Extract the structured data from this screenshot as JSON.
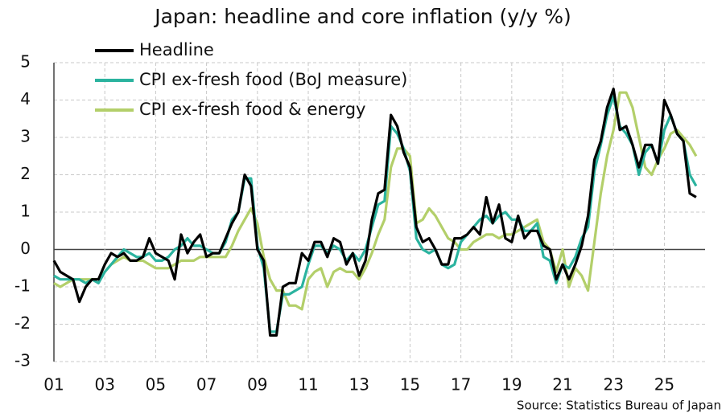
{
  "chart_data": {
    "type": "line",
    "title": "Japan: headline and core inflation (y/y %)",
    "source": "Source: Statistics Bureau of Japan",
    "x": [
      2001,
      2001.25,
      2001.5,
      2001.75,
      2002,
      2002.25,
      2002.5,
      2002.75,
      2003,
      2003.25,
      2003.5,
      2003.75,
      2004,
      2004.25,
      2004.5,
      2004.75,
      2005,
      2005.25,
      2005.5,
      2005.75,
      2006,
      2006.25,
      2006.5,
      2006.75,
      2007,
      2007.25,
      2007.5,
      2007.75,
      2008,
      2008.25,
      2008.5,
      2008.75,
      2009,
      2009.25,
      2009.5,
      2009.75,
      2010,
      2010.25,
      2010.5,
      2010.75,
      2011,
      2011.25,
      2011.5,
      2011.75,
      2012,
      2012.25,
      2012.5,
      2012.75,
      2013,
      2013.25,
      2013.5,
      2013.75,
      2014,
      2014.25,
      2014.5,
      2014.75,
      2015,
      2015.25,
      2015.5,
      2015.75,
      2016,
      2016.25,
      2016.5,
      2016.75,
      2017,
      2017.25,
      2017.5,
      2017.75,
      2018,
      2018.25,
      2018.5,
      2018.75,
      2019,
      2019.25,
      2019.5,
      2019.75,
      2020,
      2020.25,
      2020.5,
      2020.75,
      2021,
      2021.25,
      2021.5,
      2021.75,
      2022,
      2022.25,
      2022.5,
      2022.75,
      2023,
      2023.25,
      2023.5,
      2023.75,
      2024,
      2024.25,
      2024.5,
      2024.75,
      2025,
      2025.25,
      2025.5,
      2025.75,
      2026,
      2026.25
    ],
    "series": [
      {
        "name": "Headline",
        "color": "#000000",
        "values": [
          -0.3,
          -0.6,
          -0.7,
          -0.8,
          -1.4,
          -1.0,
          -0.8,
          -0.8,
          -0.4,
          -0.1,
          -0.2,
          -0.1,
          -0.3,
          -0.3,
          -0.2,
          0.3,
          -0.1,
          -0.2,
          -0.3,
          -0.8,
          0.4,
          -0.1,
          0.2,
          0.4,
          -0.2,
          -0.1,
          -0.1,
          0.3,
          0.7,
          1.0,
          2.0,
          1.7,
          0.0,
          -0.3,
          -2.3,
          -2.3,
          -1.0,
          -0.9,
          -0.9,
          -0.1,
          -0.3,
          0.2,
          0.2,
          -0.2,
          0.3,
          0.2,
          -0.4,
          -0.1,
          -0.7,
          -0.3,
          0.8,
          1.5,
          1.6,
          3.6,
          3.3,
          2.6,
          2.2,
          0.6,
          0.2,
          0.3,
          0.0,
          -0.4,
          -0.4,
          0.3,
          0.3,
          0.4,
          0.6,
          0.4,
          1.4,
          0.7,
          1.2,
          0.3,
          0.2,
          0.9,
          0.3,
          0.5,
          0.5,
          0.1,
          0.0,
          -0.8,
          -0.4,
          -0.8,
          -0.4,
          0.1,
          0.9,
          2.4,
          2.9,
          3.8,
          4.3,
          3.2,
          3.3,
          2.8,
          2.2,
          2.8,
          2.8,
          2.3,
          4.0,
          3.6,
          3.1,
          2.9,
          1.5,
          1.4
        ]
      },
      {
        "name": "CPI ex-fresh food (BoJ measure)",
        "color": "#2bb39f",
        "values": [
          -0.7,
          -0.8,
          -0.8,
          -0.8,
          -0.8,
          -0.9,
          -0.8,
          -0.9,
          -0.6,
          -0.4,
          -0.2,
          0.0,
          -0.1,
          -0.2,
          -0.2,
          -0.1,
          -0.3,
          -0.3,
          -0.2,
          0.0,
          0.1,
          0.3,
          0.1,
          0.1,
          0.0,
          -0.1,
          -0.1,
          0.2,
          0.8,
          1.0,
          1.9,
          1.9,
          0.1,
          -0.5,
          -2.2,
          -2.2,
          -1.2,
          -1.2,
          -1.1,
          -1.0,
          -0.4,
          0.1,
          0.1,
          -0.1,
          0.1,
          0.0,
          -0.3,
          -0.1,
          -0.3,
          0.0,
          0.6,
          1.2,
          1.3,
          3.3,
          3.1,
          2.7,
          2.1,
          0.3,
          0.0,
          -0.1,
          0.0,
          -0.4,
          -0.5,
          -0.4,
          0.2,
          0.4,
          0.6,
          0.8,
          0.9,
          0.7,
          0.9,
          1.0,
          0.8,
          0.8,
          0.5,
          0.5,
          0.7,
          -0.2,
          -0.3,
          -0.9,
          -0.4,
          -0.5,
          -0.2,
          0.3,
          0.6,
          2.1,
          2.8,
          3.6,
          4.1,
          3.3,
          3.1,
          2.8,
          2.0,
          2.6,
          2.8,
          2.3,
          3.2,
          3.6,
          3.1,
          2.9,
          2.0,
          1.7
        ]
      },
      {
        "name": "CPI ex-fresh food & energy",
        "color": "#b3cf6a",
        "values": [
          -0.9,
          -1.0,
          -0.9,
          -0.8,
          -0.8,
          -0.8,
          -0.8,
          -0.8,
          -0.6,
          -0.4,
          -0.3,
          -0.2,
          -0.3,
          -0.3,
          -0.3,
          -0.4,
          -0.5,
          -0.5,
          -0.5,
          -0.4,
          -0.3,
          -0.3,
          -0.3,
          -0.2,
          -0.2,
          -0.2,
          -0.2,
          -0.2,
          0.1,
          0.5,
          0.8,
          1.1,
          0.7,
          -0.2,
          -0.8,
          -1.1,
          -1.1,
          -1.5,
          -1.5,
          -1.6,
          -0.8,
          -0.6,
          -0.5,
          -1.0,
          -0.6,
          -0.5,
          -0.6,
          -0.6,
          -0.8,
          -0.5,
          -0.1,
          0.4,
          0.8,
          2.2,
          2.7,
          2.7,
          2.5,
          0.7,
          0.8,
          1.1,
          0.9,
          0.6,
          0.3,
          0.2,
          0.0,
          0.0,
          0.2,
          0.3,
          0.4,
          0.4,
          0.3,
          0.4,
          0.4,
          0.5,
          0.6,
          0.7,
          0.8,
          0.2,
          0.0,
          -0.6,
          0.0,
          -1.0,
          -0.5,
          -0.7,
          -1.1,
          0.2,
          1.5,
          2.5,
          3.2,
          4.2,
          4.2,
          3.8,
          3.0,
          2.2,
          2.0,
          2.4,
          2.7,
          3.1,
          3.2,
          3.0,
          2.8,
          2.5
        ]
      }
    ],
    "xlim": [
      2001,
      2026.6
    ],
    "xticks": [
      {
        "value": 2001,
        "label": "01"
      },
      {
        "value": 2003,
        "label": "03"
      },
      {
        "value": 2005,
        "label": "05"
      },
      {
        "value": 2007,
        "label": "07"
      },
      {
        "value": 2009,
        "label": "09"
      },
      {
        "value": 2011,
        "label": "11"
      },
      {
        "value": 2013,
        "label": "13"
      },
      {
        "value": 2015,
        "label": "15"
      },
      {
        "value": 2017,
        "label": "17"
      },
      {
        "value": 2019,
        "label": "19"
      },
      {
        "value": 2021,
        "label": "21"
      },
      {
        "value": 2023,
        "label": "23"
      },
      {
        "value": 2025,
        "label": "25"
      }
    ],
    "ylim": [
      -3,
      5
    ],
    "yticks": [
      -3,
      -2,
      -1,
      0,
      1,
      2,
      3,
      4,
      5
    ],
    "negative_tick_color": "#e3262e",
    "grid": true,
    "legend": "upper left"
  }
}
